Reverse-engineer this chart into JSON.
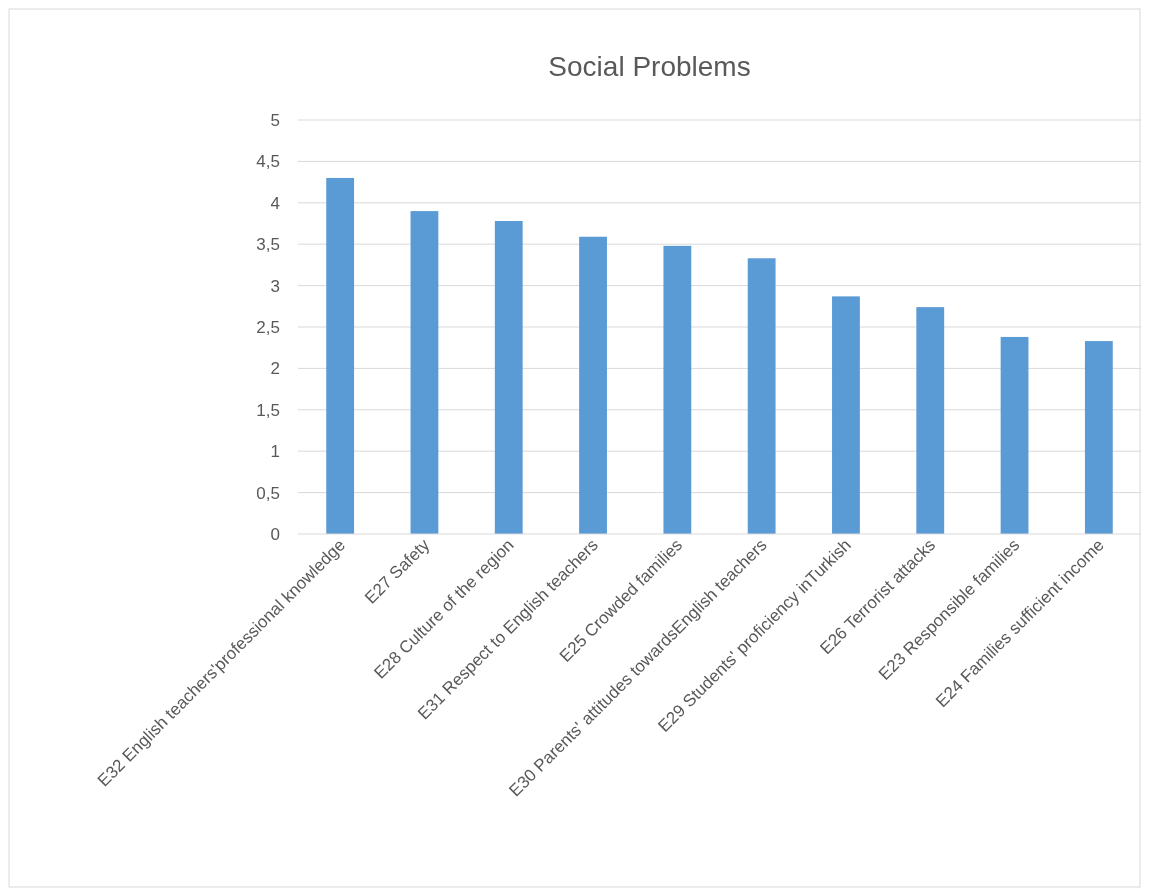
{
  "chart_data": {
    "type": "bar",
    "title": "Social Problems",
    "categories": [
      "E32 English teachers'professional knowledge",
      "E27 Safety",
      "E28 Culture of the region",
      "E31 Respect to English teachers",
      "E25 Crowded families",
      "E30 Parents' attitudes towardsEnglish teachers",
      "E29 Students' proficiency inTurkish",
      "E26 Terrorist attacks",
      "E23 Responsible families",
      "E24 Families sufficient income"
    ],
    "values": [
      4.3,
      3.9,
      3.78,
      3.59,
      3.48,
      3.33,
      2.87,
      2.74,
      2.38,
      2.33
    ],
    "color": "#5b9bd5",
    "ylim": [
      0,
      5
    ],
    "yticks": [
      0,
      {
        "value": 0.5,
        "label": "0,5"
      },
      1,
      {
        "value": 1.5,
        "label": "1,5"
      },
      2,
      {
        "value": 2.5,
        "label": "2,5"
      },
      3,
      {
        "value": 3.5,
        "label": "3,5"
      },
      4,
      {
        "value": 4.5,
        "label": "4,5"
      },
      5
    ],
    "grid": "y"
  }
}
